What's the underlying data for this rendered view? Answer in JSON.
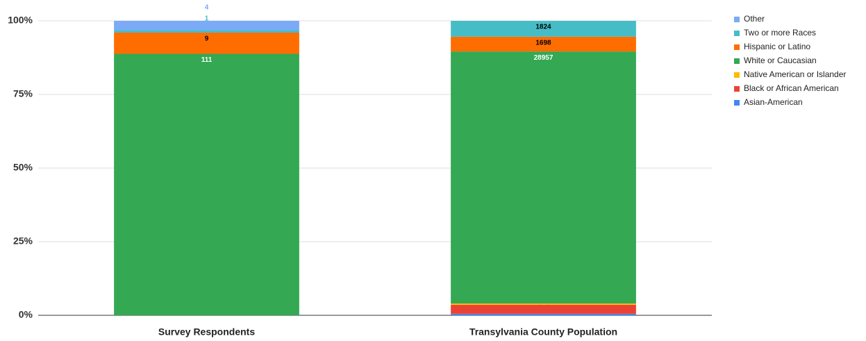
{
  "chart_data": {
    "type": "bar",
    "stack": "percent",
    "categories": [
      "Survey Respondents",
      "Transylvania County Population"
    ],
    "series": [
      {
        "name": "Asian-American",
        "color": "#4285f4",
        "values": [
          0,
          173
        ]
      },
      {
        "name": "Black or African American",
        "color": "#ea4335",
        "values": [
          0,
          1037
        ]
      },
      {
        "name": "Native American or Islander",
        "color": "#fbbc04",
        "values": [
          0,
          147
        ]
      },
      {
        "name": "White or Caucasian",
        "color": "#34a853",
        "values": [
          111,
          28957
        ]
      },
      {
        "name": "Hispanic or Latino",
        "color": "#ff6d01",
        "values": [
          9,
          1698
        ]
      },
      {
        "name": "Two or more Races",
        "color": "#46bdc6",
        "values": [
          1,
          1824
        ]
      },
      {
        "name": "Other",
        "color": "#7baaf7",
        "values": [
          4,
          null
        ]
      }
    ],
    "ylim": [
      0,
      100
    ],
    "yticks": [
      {
        "value": 0,
        "label": "0%"
      },
      {
        "value": 25,
        "label": "25%"
      },
      {
        "value": 50,
        "label": "50%"
      },
      {
        "value": 75,
        "label": "75%"
      },
      {
        "value": 100,
        "label": "100%"
      }
    ],
    "grid": true,
    "legend": "right"
  }
}
